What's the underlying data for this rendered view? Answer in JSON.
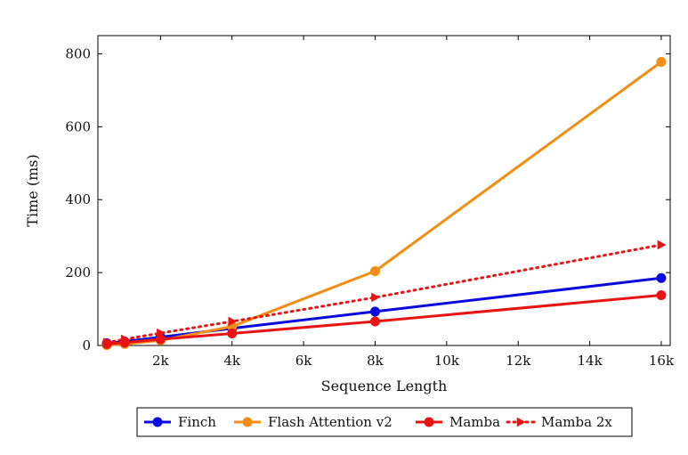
{
  "chart_data": {
    "type": "line",
    "title": "",
    "xlabel": "Sequence Length",
    "ylabel": "Time (ms)",
    "xlim": [
      256,
      16640
    ],
    "ylim": [
      0,
      850
    ],
    "x_ticks": [
      2048,
      4096,
      6144,
      8192,
      10240,
      12288,
      14336,
      16384
    ],
    "x_tick_labels": [
      "2k",
      "4k",
      "6k",
      "8k",
      "10k",
      "12k",
      "14k",
      "16k"
    ],
    "y_ticks": [
      0,
      200,
      400,
      600,
      800
    ],
    "y_tick_labels": [
      "0",
      "200",
      "400",
      "600",
      "800"
    ],
    "grid": false,
    "legend_position": "bottom-center",
    "series": [
      {
        "name": "Finch",
        "color": "#0a0adf",
        "style": "solid",
        "marker": "circle",
        "x": [
          512,
          1024,
          2048,
          4096,
          8192,
          16384
        ],
        "y": [
          6,
          11,
          23,
          47,
          93,
          185
        ]
      },
      {
        "name": "Flash Attention v2",
        "color": "#f28e14",
        "style": "solid",
        "marker": "circle",
        "x": [
          512,
          1024,
          2048,
          4096,
          8192,
          16384
        ],
        "y": [
          1,
          4,
          14,
          52,
          204,
          778
        ]
      },
      {
        "name": "Mamba",
        "color": "#e81414",
        "style": "solid",
        "marker": "circle",
        "x": [
          512,
          1024,
          2048,
          4096,
          8192,
          16384
        ],
        "y": [
          4,
          8,
          17,
          33,
          66,
          138
        ]
      },
      {
        "name": "Mamba 2x",
        "color": "#e81414",
        "style": "dotted",
        "marker": "triangle-right",
        "x": [
          512,
          1024,
          2048,
          4096,
          8192,
          16384
        ],
        "y": [
          8,
          17,
          34,
          66,
          132,
          276
        ]
      }
    ]
  }
}
